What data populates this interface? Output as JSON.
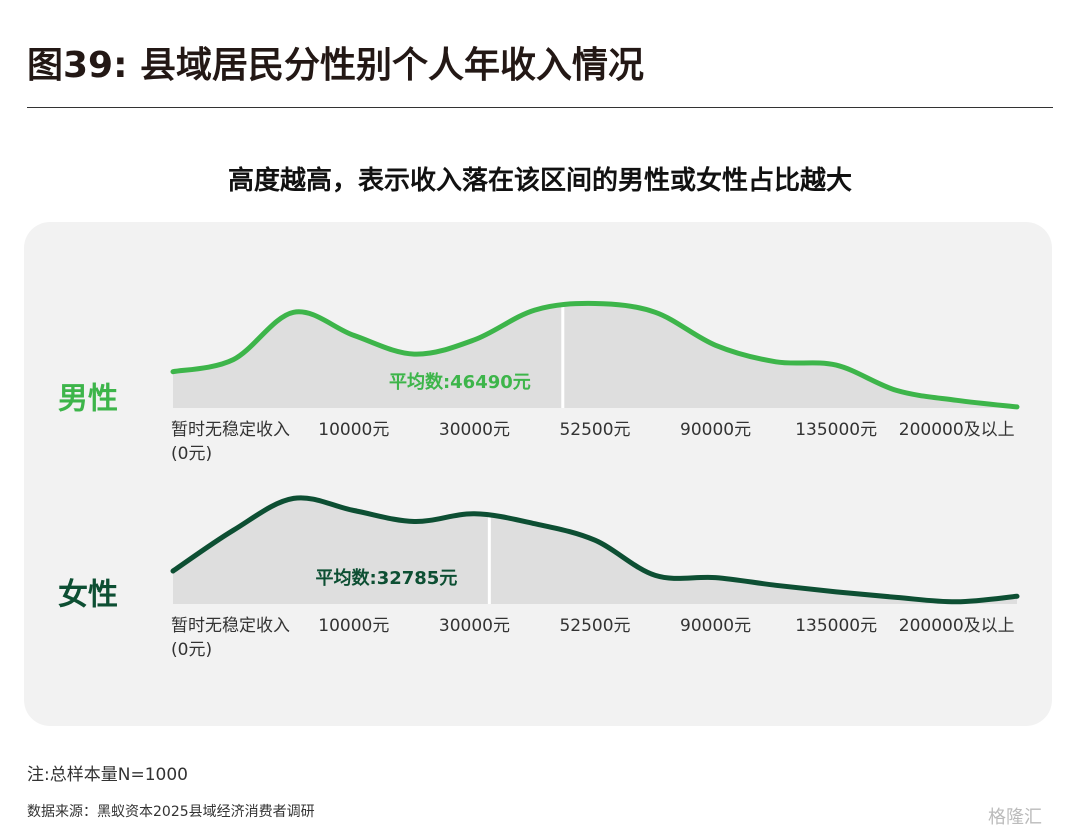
{
  "header": {
    "title": "图39: 县域居民分性别个人年收入情况"
  },
  "subtitle": "高度越高，表示收入落在该区间的男性或女性占比越大",
  "chart_data": [
    {
      "type": "area",
      "name": "男性",
      "color": "#3db54a",
      "categories": [
        null,
        "暂时无稳定收入\n(0元)",
        null,
        "10000元",
        null,
        "30000元",
        null,
        "52500元",
        null,
        "90000元",
        null,
        "135000元",
        null,
        "200000及以上",
        null
      ],
      "category_values": [
        null,
        0,
        null,
        10000,
        null,
        30000,
        null,
        52500,
        null,
        90000,
        null,
        135000,
        null,
        200000,
        null
      ],
      "values": [
        33,
        44,
        87,
        66,
        49,
        62,
        89,
        95,
        87,
        57,
        42,
        39,
        16,
        7,
        1
      ],
      "ylim": [
        0,
        100
      ],
      "mean": {
        "value": 46490,
        "label": "平均数:46490元"
      }
    },
    {
      "type": "area",
      "name": "女性",
      "color": "#0d4f33",
      "categories": [
        null,
        "暂时无稳定收入\n(0元)",
        null,
        "10000元",
        null,
        "30000元",
        null,
        "52500元",
        null,
        "90000元",
        null,
        "135000元",
        null,
        "200000及以上",
        null
      ],
      "category_values": [
        null,
        0,
        null,
        10000,
        null,
        30000,
        null,
        52500,
        null,
        90000,
        null,
        135000,
        null,
        200000,
        null
      ],
      "values": [
        30,
        67,
        96,
        85,
        75,
        82,
        73,
        58,
        26,
        24,
        17,
        11,
        6,
        2,
        7
      ],
      "ylim": [
        0,
        100
      ],
      "mean": {
        "value": 32785,
        "label": "平均数:32785元"
      }
    }
  ],
  "note": "注:总样本量N=1000",
  "source": "数据来源：黑蚁资本2025县域经济消费者调研",
  "watermark": "格隆汇"
}
